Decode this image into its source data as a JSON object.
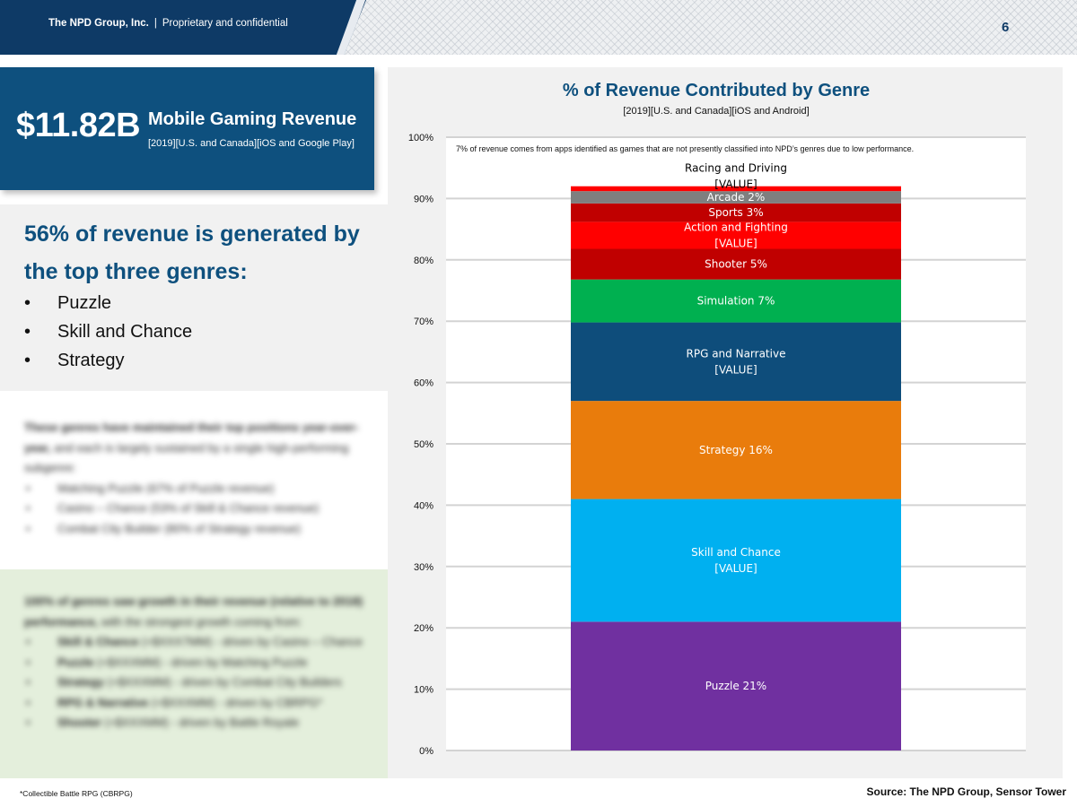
{
  "header": {
    "company": "The NPD Group, Inc.",
    "separator": "|",
    "confidential": "Proprietary and confidential",
    "page_number": "6"
  },
  "kpi": {
    "value": "$11.82B",
    "title": "Mobile Gaming Revenue",
    "subtitle": "[2019][U.S. and Canada][iOS and Google Play]"
  },
  "highlight": {
    "headline": "56% of revenue is generated by the top three genres:",
    "bullets": [
      "Puzzle",
      "Skill and Chance",
      "Strategy"
    ]
  },
  "blurred_text_1": {
    "intro_bold": "These genres have maintained their top positions year-over-year,",
    "intro_rest": " and each is largely sustained by a single high-performing subgenre:",
    "bullets": [
      "Matching Puzzle (67% of Puzzle revenue)",
      "Casino – Chance (53% of Skill & Chance revenue)",
      "Combat City Builder (80% of Strategy revenue)"
    ]
  },
  "blurred_text_2": {
    "intro_bold": "100% of genres saw growth in their revenue (relative to 2018) performance,",
    "intro_rest": " with the strongest growth coming from:",
    "bullets": [
      {
        "bold": "Skill & Chance",
        "rest": " (+$XXX7MM) - driven by Casino – Chance"
      },
      {
        "bold": "Puzzle",
        "rest": " (+$XXXMM) - driven by Matching Puzzle"
      },
      {
        "bold": "Strategy",
        "rest": " (+$XXXMM) - driven by Combat City Builders"
      },
      {
        "bold": "RPG & Narrative",
        "rest": " (+$XXXMM) - driven by CBRPG*"
      },
      {
        "bold": "Shooter",
        "rest": " (+$XXXMM) - driven by Battle Royale"
      }
    ]
  },
  "footnote": "*Collectible Battle RPG (CBRPG)",
  "source": "Source: The NPD Group, Sensor Tower",
  "chart_data": {
    "type": "bar",
    "stacked": true,
    "title": "% of Revenue Contributed by Genre",
    "subtitle": "[2019][U.S. and Canada][iOS and Android]",
    "annotation": "7% of revenue comes from apps identified as games that are not presently classified into NPD’s genres due to low performance.",
    "ylim": [
      0,
      100
    ],
    "yticks": [
      "0%",
      "10%",
      "20%",
      "30%",
      "40%",
      "50%",
      "60%",
      "70%",
      "80%",
      "90%",
      "100%"
    ],
    "grid": true,
    "series": [
      {
        "name": "Puzzle",
        "value": 21,
        "label": "Puzzle 21%",
        "color": "#7030a0",
        "label_color": "#ffffff"
      },
      {
        "name": "Skill and Chance",
        "value": 20,
        "label": "Skill and Chance\n[VALUE]",
        "color": "#00b0f0",
        "label_color": "#ffffff"
      },
      {
        "name": "Strategy",
        "value": 16,
        "label": "Strategy 16%",
        "color": "#e97c0c",
        "label_color": "#ffffff"
      },
      {
        "name": "RPG and Narrative",
        "value": 12.8,
        "label": "RPG and Narrative\n[VALUE]",
        "color": "#0e4d7b",
        "label_color": "#ffffff"
      },
      {
        "name": "Simulation",
        "value": 7,
        "label": "Simulation 7%",
        "color": "#00b050",
        "label_color": "#ffffff"
      },
      {
        "name": "Shooter",
        "value": 5,
        "label": "Shooter 5%",
        "color": "#c00000",
        "label_color": "#ffffff"
      },
      {
        "name": "Action and Fighting",
        "value": 4.4,
        "label": "Action and Fighting\n[VALUE]",
        "color": "#ff0000",
        "label_color": "#ffffff"
      },
      {
        "name": "Sports",
        "value": 3,
        "label": "Sports 3%",
        "color": "#c00000",
        "label_color": "#ffffff"
      },
      {
        "name": "Arcade",
        "value": 2,
        "label": "Arcade 2%",
        "color": "#7f7f7f",
        "label_color": "#ffffff"
      },
      {
        "name": "Racing and Driving",
        "value": 0.8,
        "label": "Racing and Driving\n[VALUE]",
        "color": "#ff0000",
        "label_color": "#000000",
        "label_outside": true
      }
    ]
  }
}
